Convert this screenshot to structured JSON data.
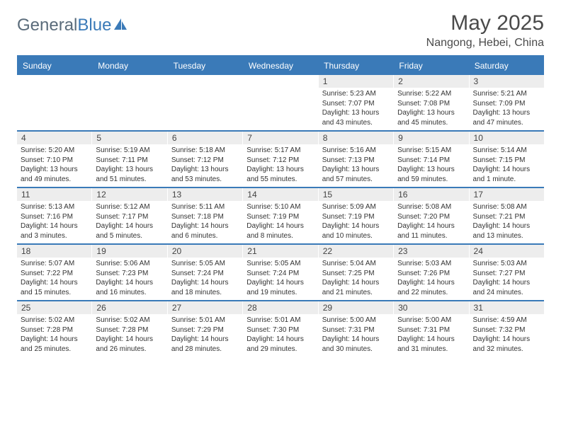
{
  "brand": {
    "part1": "General",
    "part2": "Blue"
  },
  "title": "May 2025",
  "location": "Nangong, Hebei, China",
  "colors": {
    "accent": "#3a7ab8",
    "headerText": "#ffffff",
    "daynumBg": "#ededed",
    "bodyText": "#333333",
    "titleText": "#4a4a4a",
    "logoGray": "#5a6b7a"
  },
  "dayNames": [
    "Sunday",
    "Monday",
    "Tuesday",
    "Wednesday",
    "Thursday",
    "Friday",
    "Saturday"
  ],
  "weeks": [
    [
      {
        "num": "",
        "sunrise": "",
        "sunset": "",
        "daylight": ""
      },
      {
        "num": "",
        "sunrise": "",
        "sunset": "",
        "daylight": ""
      },
      {
        "num": "",
        "sunrise": "",
        "sunset": "",
        "daylight": ""
      },
      {
        "num": "",
        "sunrise": "",
        "sunset": "",
        "daylight": ""
      },
      {
        "num": "1",
        "sunrise": "Sunrise: 5:23 AM",
        "sunset": "Sunset: 7:07 PM",
        "daylight": "Daylight: 13 hours and 43 minutes."
      },
      {
        "num": "2",
        "sunrise": "Sunrise: 5:22 AM",
        "sunset": "Sunset: 7:08 PM",
        "daylight": "Daylight: 13 hours and 45 minutes."
      },
      {
        "num": "3",
        "sunrise": "Sunrise: 5:21 AM",
        "sunset": "Sunset: 7:09 PM",
        "daylight": "Daylight: 13 hours and 47 minutes."
      }
    ],
    [
      {
        "num": "4",
        "sunrise": "Sunrise: 5:20 AM",
        "sunset": "Sunset: 7:10 PM",
        "daylight": "Daylight: 13 hours and 49 minutes."
      },
      {
        "num": "5",
        "sunrise": "Sunrise: 5:19 AM",
        "sunset": "Sunset: 7:11 PM",
        "daylight": "Daylight: 13 hours and 51 minutes."
      },
      {
        "num": "6",
        "sunrise": "Sunrise: 5:18 AM",
        "sunset": "Sunset: 7:12 PM",
        "daylight": "Daylight: 13 hours and 53 minutes."
      },
      {
        "num": "7",
        "sunrise": "Sunrise: 5:17 AM",
        "sunset": "Sunset: 7:12 PM",
        "daylight": "Daylight: 13 hours and 55 minutes."
      },
      {
        "num": "8",
        "sunrise": "Sunrise: 5:16 AM",
        "sunset": "Sunset: 7:13 PM",
        "daylight": "Daylight: 13 hours and 57 minutes."
      },
      {
        "num": "9",
        "sunrise": "Sunrise: 5:15 AM",
        "sunset": "Sunset: 7:14 PM",
        "daylight": "Daylight: 13 hours and 59 minutes."
      },
      {
        "num": "10",
        "sunrise": "Sunrise: 5:14 AM",
        "sunset": "Sunset: 7:15 PM",
        "daylight": "Daylight: 14 hours and 1 minute."
      }
    ],
    [
      {
        "num": "11",
        "sunrise": "Sunrise: 5:13 AM",
        "sunset": "Sunset: 7:16 PM",
        "daylight": "Daylight: 14 hours and 3 minutes."
      },
      {
        "num": "12",
        "sunrise": "Sunrise: 5:12 AM",
        "sunset": "Sunset: 7:17 PM",
        "daylight": "Daylight: 14 hours and 5 minutes."
      },
      {
        "num": "13",
        "sunrise": "Sunrise: 5:11 AM",
        "sunset": "Sunset: 7:18 PM",
        "daylight": "Daylight: 14 hours and 6 minutes."
      },
      {
        "num": "14",
        "sunrise": "Sunrise: 5:10 AM",
        "sunset": "Sunset: 7:19 PM",
        "daylight": "Daylight: 14 hours and 8 minutes."
      },
      {
        "num": "15",
        "sunrise": "Sunrise: 5:09 AM",
        "sunset": "Sunset: 7:19 PM",
        "daylight": "Daylight: 14 hours and 10 minutes."
      },
      {
        "num": "16",
        "sunrise": "Sunrise: 5:08 AM",
        "sunset": "Sunset: 7:20 PM",
        "daylight": "Daylight: 14 hours and 11 minutes."
      },
      {
        "num": "17",
        "sunrise": "Sunrise: 5:08 AM",
        "sunset": "Sunset: 7:21 PM",
        "daylight": "Daylight: 14 hours and 13 minutes."
      }
    ],
    [
      {
        "num": "18",
        "sunrise": "Sunrise: 5:07 AM",
        "sunset": "Sunset: 7:22 PM",
        "daylight": "Daylight: 14 hours and 15 minutes."
      },
      {
        "num": "19",
        "sunrise": "Sunrise: 5:06 AM",
        "sunset": "Sunset: 7:23 PM",
        "daylight": "Daylight: 14 hours and 16 minutes."
      },
      {
        "num": "20",
        "sunrise": "Sunrise: 5:05 AM",
        "sunset": "Sunset: 7:24 PM",
        "daylight": "Daylight: 14 hours and 18 minutes."
      },
      {
        "num": "21",
        "sunrise": "Sunrise: 5:05 AM",
        "sunset": "Sunset: 7:24 PM",
        "daylight": "Daylight: 14 hours and 19 minutes."
      },
      {
        "num": "22",
        "sunrise": "Sunrise: 5:04 AM",
        "sunset": "Sunset: 7:25 PM",
        "daylight": "Daylight: 14 hours and 21 minutes."
      },
      {
        "num": "23",
        "sunrise": "Sunrise: 5:03 AM",
        "sunset": "Sunset: 7:26 PM",
        "daylight": "Daylight: 14 hours and 22 minutes."
      },
      {
        "num": "24",
        "sunrise": "Sunrise: 5:03 AM",
        "sunset": "Sunset: 7:27 PM",
        "daylight": "Daylight: 14 hours and 24 minutes."
      }
    ],
    [
      {
        "num": "25",
        "sunrise": "Sunrise: 5:02 AM",
        "sunset": "Sunset: 7:28 PM",
        "daylight": "Daylight: 14 hours and 25 minutes."
      },
      {
        "num": "26",
        "sunrise": "Sunrise: 5:02 AM",
        "sunset": "Sunset: 7:28 PM",
        "daylight": "Daylight: 14 hours and 26 minutes."
      },
      {
        "num": "27",
        "sunrise": "Sunrise: 5:01 AM",
        "sunset": "Sunset: 7:29 PM",
        "daylight": "Daylight: 14 hours and 28 minutes."
      },
      {
        "num": "28",
        "sunrise": "Sunrise: 5:01 AM",
        "sunset": "Sunset: 7:30 PM",
        "daylight": "Daylight: 14 hours and 29 minutes."
      },
      {
        "num": "29",
        "sunrise": "Sunrise: 5:00 AM",
        "sunset": "Sunset: 7:31 PM",
        "daylight": "Daylight: 14 hours and 30 minutes."
      },
      {
        "num": "30",
        "sunrise": "Sunrise: 5:00 AM",
        "sunset": "Sunset: 7:31 PM",
        "daylight": "Daylight: 14 hours and 31 minutes."
      },
      {
        "num": "31",
        "sunrise": "Sunrise: 4:59 AM",
        "sunset": "Sunset: 7:32 PM",
        "daylight": "Daylight: 14 hours and 32 minutes."
      }
    ]
  ]
}
